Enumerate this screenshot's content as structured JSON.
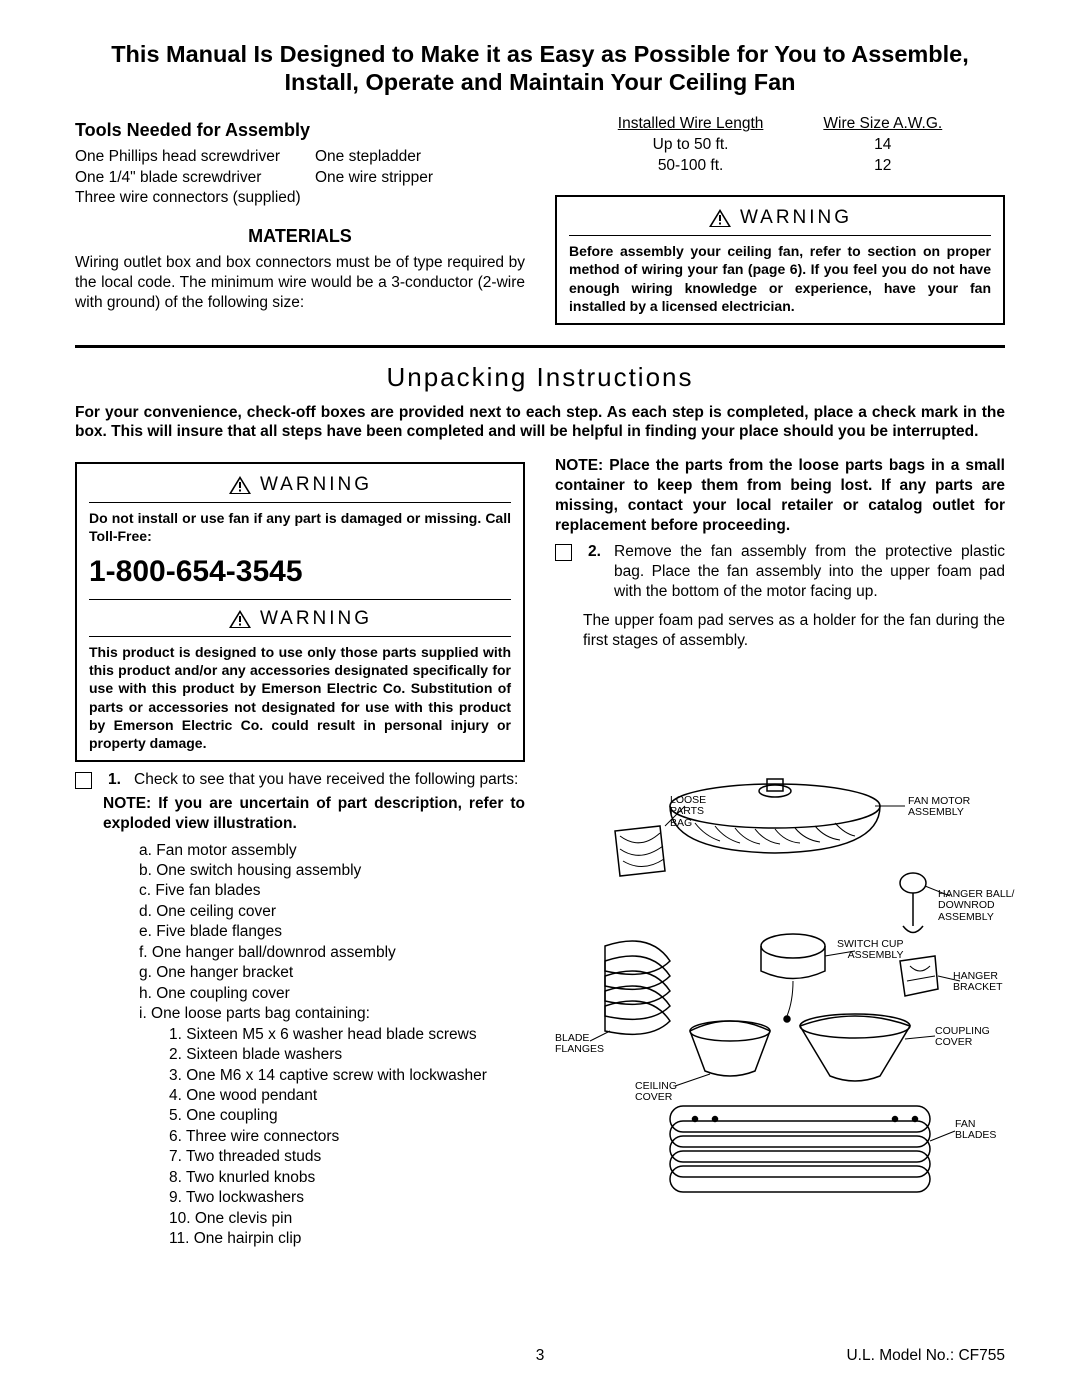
{
  "mainTitle": "This Manual Is Designed to Make it as Easy as Possible for You to Assemble, Install, Operate and Maintain Your Ceiling Fan",
  "tools": {
    "heading": "Tools Needed for Assembly",
    "rows": [
      [
        "One Phillips head screwdriver",
        "One stepladder"
      ],
      [
        "One 1/4\" blade screwdriver",
        "One wire stripper"
      ],
      [
        "Three wire connectors (supplied)",
        ""
      ]
    ]
  },
  "materials": {
    "heading": "MATERIALS",
    "body": "Wiring outlet box and box connectors must be of type required by the local code. The minimum wire would be a 3-conductor (2-wire with ground) of the following size:"
  },
  "wireTable": {
    "col1Header": "Installed Wire Length",
    "col2Header": "Wire Size A.W.G.",
    "rows": [
      [
        "Up to 50 ft.",
        "14"
      ],
      [
        "50-100 ft.",
        "12"
      ]
    ]
  },
  "warning1": {
    "label": "WARNING",
    "body": "Before assembly your ceiling fan, refer to section on proper method of wiring your fan (page 6). If you feel you do not have enough wiring knowledge or experience, have your fan installed by a licensed electrician."
  },
  "unpackTitle": "Unpacking Instructions",
  "unpackIntro": "For your convenience, check-off boxes are provided next to each step. As each step is completed, place a check mark in the box. This will insure that all steps have been completed and will be helpful in finding your place should you be interrupted.",
  "warning2": {
    "label": "WARNING",
    "body": "Do not install or use fan if any part is damaged or missing. Call Toll-Free:",
    "phone": "1-800-654-3545"
  },
  "warning3": {
    "label": "WARNING",
    "body": "This product is designed to use only those parts supplied with this product and/or any accessories designated specifically for use with this product by Emerson Electric Co. Substitution of parts or accessories not designated for use with this product by Emerson Electric Co. could result in personal injury or property damage."
  },
  "step1": {
    "num": "1.",
    "body": "Check to see that you have received the following parts:",
    "note": "NOTE: If you are uncertain of part description, refer to exploded view illustration.",
    "parts": [
      "a. Fan motor assembly",
      "b. One switch housing assembly",
      "c. Five fan blades",
      "d. One ceiling cover",
      "e. Five blade flanges",
      "f.  One hanger ball/downrod assembly",
      "g. One hanger bracket",
      "h. One coupling cover",
      "i.  One loose parts bag containing:"
    ],
    "subparts": [
      "  1. Sixteen M5 x 6 washer head blade screws",
      "  2. Sixteen blade washers",
      "  3. One M6 x 14 captive screw with lockwasher",
      "  4. One wood pendant",
      "  5. One coupling",
      "  6. Three wire connectors",
      "  7. Two threaded studs",
      "  8. Two knurled knobs",
      "  9. Two lockwashers",
      "10. One clevis pin",
      "11. One hairpin clip"
    ]
  },
  "rightNote": "NOTE: Place the parts from the loose parts bags in a small container to keep them from being lost. If any parts are missing, contact your local retailer or catalog outlet for replacement before proceeding.",
  "step2": {
    "num": "2.",
    "body": "Remove the fan assembly from the protective plastic bag. Place the fan assembly into the upper foam pad with the bottom of the motor facing up.",
    "extra": "The upper foam pad serves as a holder for the fan during the first stages of assembly."
  },
  "diagramLabels": {
    "looseParts": "LOOSE\nPARTS\nBAG",
    "fanMotor": "FAN MOTOR\nASSEMBLY",
    "hangerBall": "HANGER BALL/\nDOWNROD\nASSEMBLY",
    "switchCup": "SWITCH CUP\nASSEMBLY",
    "hangerBracket": "HANGER\nBRACKET",
    "bladeFlanges": "BLADE\nFLANGES",
    "couplingCover": "COUPLING\nCOVER",
    "ceilingCover": "CEILING\nCOVER",
    "fanBlades": "FAN\nBLADES"
  },
  "footer": {
    "pageNum": "3",
    "model": "U.L. Model No.: CF755"
  }
}
